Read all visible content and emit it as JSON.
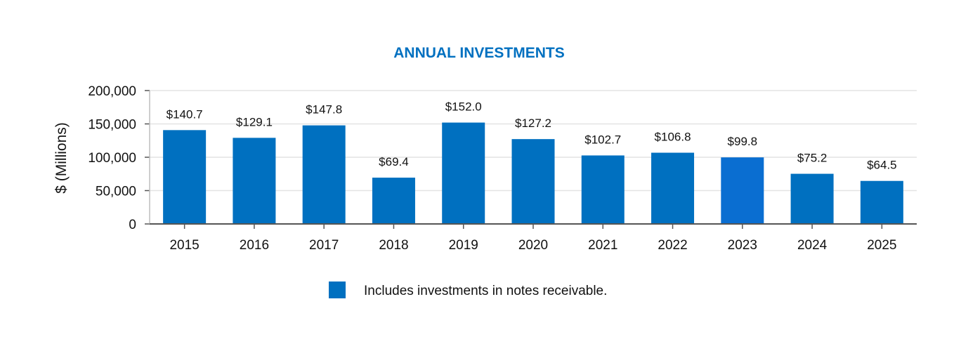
{
  "chart_data": {
    "type": "bar",
    "title": "ANNUAL INVESTMENTS",
    "xlabel": "",
    "ylabel": "$ (Millions)",
    "ylim": [
      0,
      200000
    ],
    "yticks": [
      0,
      50000,
      100000,
      150000,
      200000
    ],
    "ytick_labels": [
      "0",
      "50,000",
      "100,000",
      "150,000",
      "200,000"
    ],
    "categories": [
      "2015",
      "2016",
      "2017",
      "2018",
      "2019",
      "2020",
      "2021",
      "2022",
      "2023",
      "2024",
      "2025"
    ],
    "values": [
      140700,
      129100,
      147800,
      69400,
      152000,
      127200,
      102700,
      106800,
      99800,
      75200,
      64500
    ],
    "data_labels": [
      "$140.7",
      "$129.1",
      "$147.8",
      "$69.4",
      "$152.0",
      "$127.2",
      "$102.7",
      "$106.8",
      "$99.8",
      "$75.2",
      "$64.5"
    ],
    "grid": true,
    "legend": [
      {
        "label": "Includes investments in notes receivable.",
        "color": "#0070C0"
      }
    ],
    "legend_position": "bottom"
  },
  "colors": {
    "bar": "#0070C0",
    "bar_highlight": "#0A6ED1",
    "title": "#0070C0",
    "grid": "#E3E3E3",
    "axis": "#555555"
  }
}
